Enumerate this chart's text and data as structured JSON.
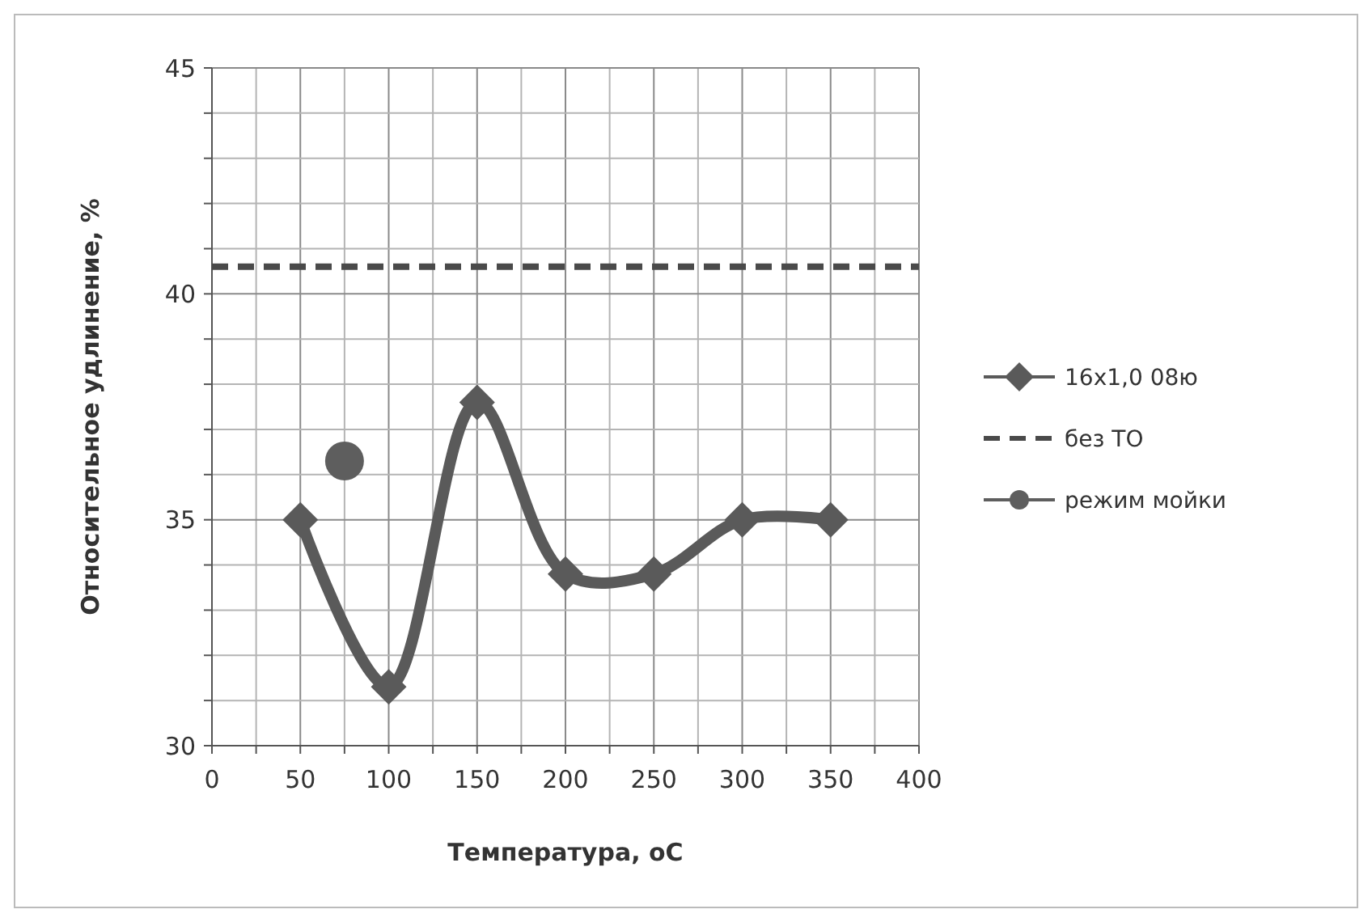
{
  "chart_data": {
    "type": "line",
    "xlabel": "Температура, оС",
    "ylabel": "Относительное удлинение, %",
    "xlim": [
      0,
      400
    ],
    "ylim": [
      30,
      45
    ],
    "xticks": [
      0,
      {
        "value": 25,
        "label": null
      },
      50,
      {
        "value": 75,
        "label": null
      },
      100,
      {
        "value": 125,
        "label": null
      },
      150,
      {
        "value": 175,
        "label": null
      },
      200,
      {
        "value": 225,
        "label": null
      },
      250,
      {
        "value": 275,
        "label": null
      },
      300,
      {
        "value": 325,
        "label": null
      },
      350,
      {
        "value": 375,
        "label": null
      },
      400
    ],
    "yticks": [
      30,
      {
        "value": 31,
        "label": null
      },
      {
        "value": 32,
        "label": null
      },
      {
        "value": 33,
        "label": null
      },
      {
        "value": 34,
        "label": null
      },
      35,
      {
        "value": 36,
        "label": null
      },
      {
        "value": 37,
        "label": null
      },
      {
        "value": 38,
        "label": null
      },
      {
        "value": 39,
        "label": null
      },
      40,
      {
        "value": 41,
        "label": null
      },
      {
        "value": 42,
        "label": null
      },
      {
        "value": 43,
        "label": null
      },
      {
        "value": 44,
        "label": null
      },
      45
    ],
    "grid": true,
    "legend": "right",
    "series": [
      {
        "name": "16x1,0 08ю",
        "color": "#5a5a5a",
        "marker": "diamond",
        "line_style": "solid",
        "x": [
          50,
          100,
          150,
          200,
          250,
          300,
          350
        ],
        "values": [
          35.0,
          31.3,
          37.6,
          33.8,
          33.8,
          35.0,
          35.0
        ]
      },
      {
        "name": "без ТО",
        "color": "#4a4a4a",
        "marker": "none",
        "line_style": "dashed",
        "x": [
          0,
          400
        ],
        "values": [
          40.6,
          40.6
        ]
      },
      {
        "name": "режим мойки",
        "type": "scatter",
        "color": "#5e5e5e",
        "marker": "circle",
        "x": [
          75
        ],
        "values": [
          36.3
        ]
      }
    ]
  }
}
